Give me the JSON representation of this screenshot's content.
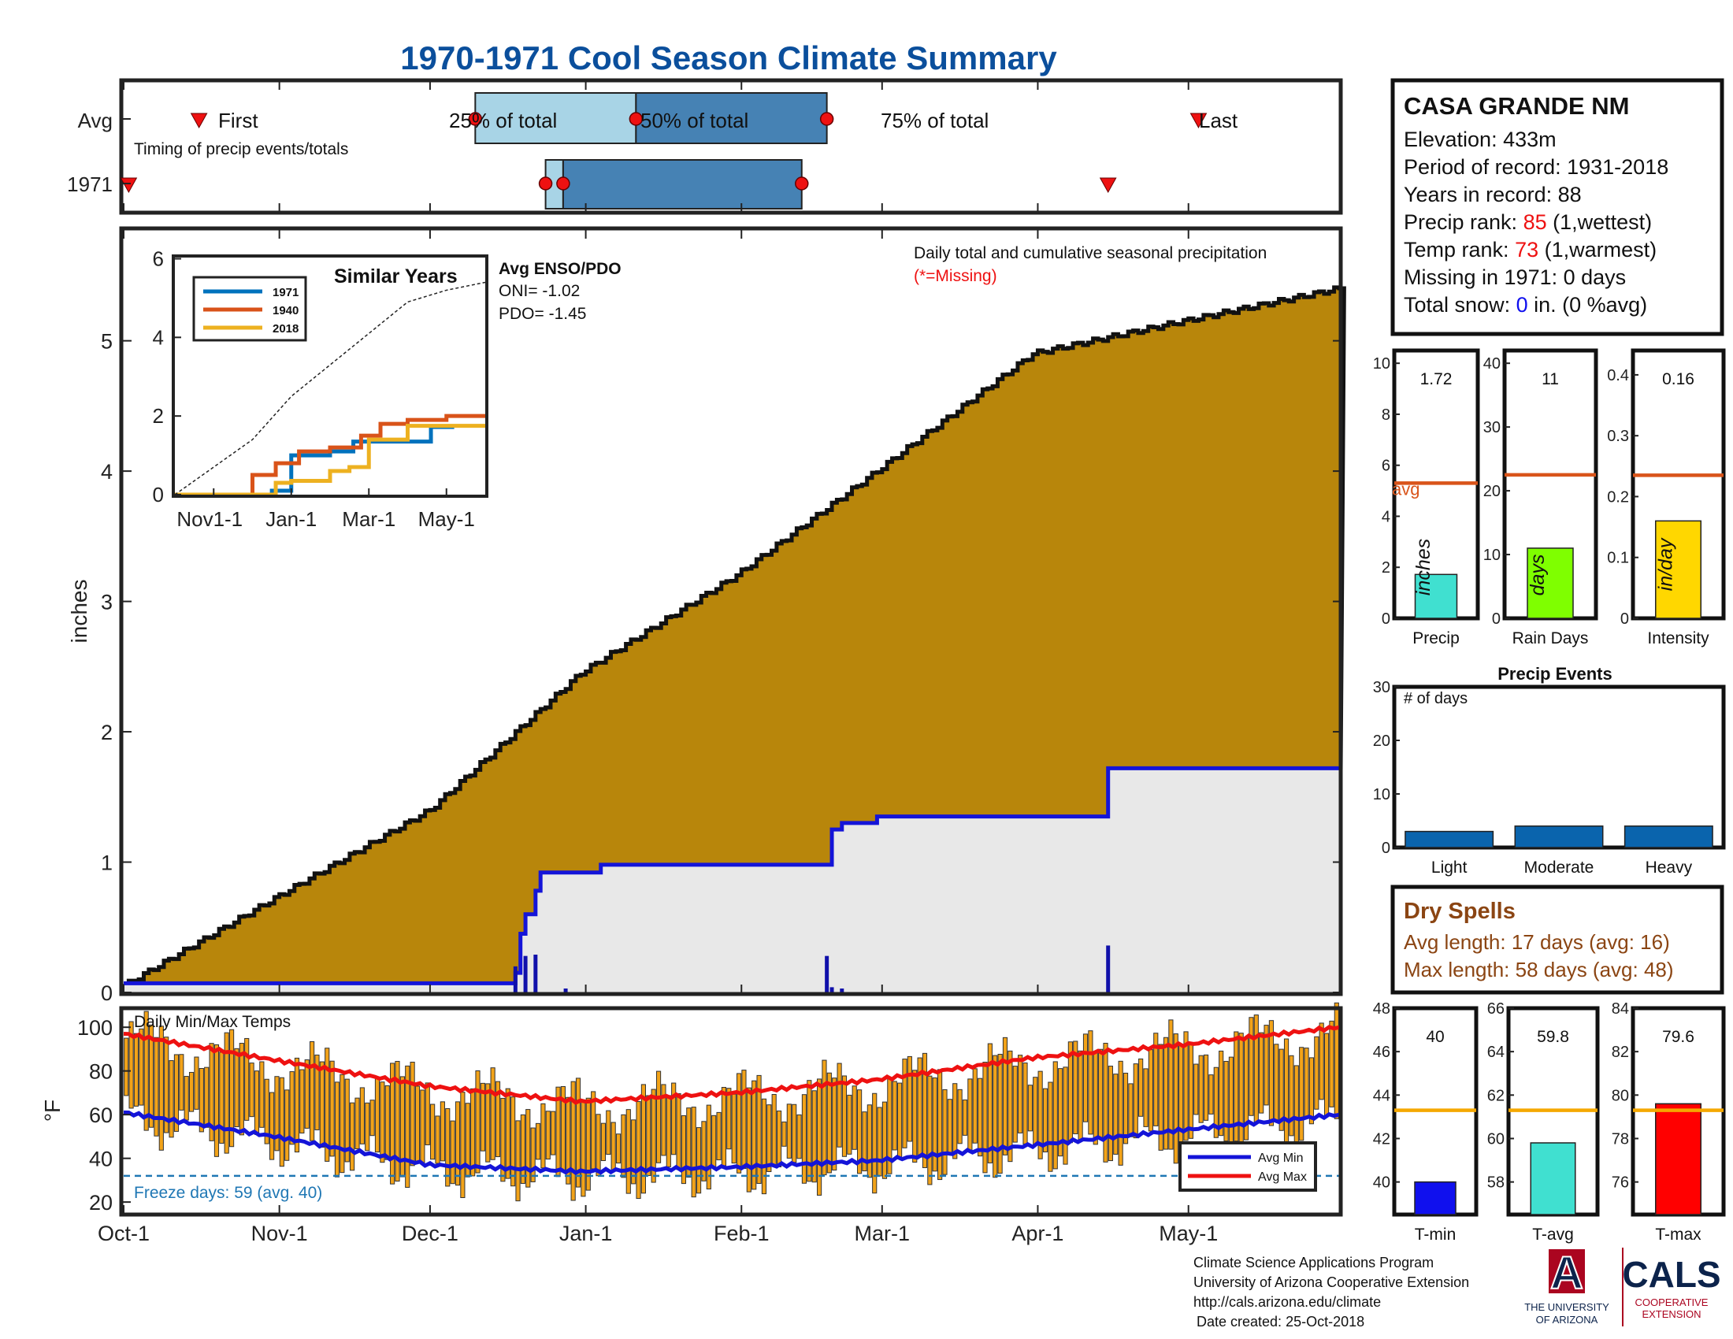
{
  "title": "1970-1971 Cool Season Climate Summary",
  "colors": {
    "title": "#0b4f9c",
    "brown": "#b8860b",
    "light_fill": "#e8e8e8",
    "blue_line": "#1414d8",
    "red_line": "#ee1111",
    "orange_bar": "#f2a319",
    "avg_line": "#d9541a",
    "temp_avg_line": "#f5a800",
    "precip_bar": "#40e0d0",
    "raindays_bar": "#7fff00",
    "intensity_bar": "#ffd700",
    "events_bar": "#0a64ad",
    "tmin_bar": "#1010ee",
    "tavg_bar": "#40e0d0",
    "tmax_bar": "#ff0000",
    "dry_spells": "#8b4513",
    "rank_red": "#ee1111",
    "snow_blue": "#1010ee",
    "box_light": "#a8d4e6",
    "box_dark": "#4682b4",
    "cals_blue": "#0c234b",
    "cals_red": "#ab0520"
  },
  "timing": {
    "row_avg": "Avg",
    "row_year": "1971",
    "subtitle": "Timing of precip events/totals",
    "first": "First",
    "p25": "25% of total",
    "p50": "50% of total",
    "p75": "75% of total",
    "last": "Last"
  },
  "station": {
    "name": "CASA GRANDE NM",
    "elevation": "Elevation: 433m",
    "period": "Period of record: 1931-2018",
    "years": "Years in record: 88",
    "precip_rank_label": "Precip rank: ",
    "precip_rank_value": "85",
    "precip_rank_suffix": " (1,wettest)",
    "temp_rank_label": "Temp rank: ",
    "temp_rank_value": "73",
    "temp_rank_suffix": " (1,warmest)",
    "missing": "Missing in 1971: 0 days",
    "snow_label": "Total snow: ",
    "snow_value": "0",
    "snow_suffix": " in. (0 %avg)"
  },
  "main_chart": {
    "ylabel": "inches",
    "legend_title": "Daily total and cumulative seasonal precipitation",
    "missing_note": "(*=Missing)",
    "yticks": [
      "0",
      "1",
      "2",
      "3",
      "4",
      "5"
    ],
    "xticks": [
      "Oct-1",
      "Nov-1",
      "Dec-1",
      "Jan-1",
      "Feb-1",
      "Mar-1",
      "Apr-1",
      "May-1"
    ]
  },
  "inset": {
    "title": "Similar Years",
    "legend": [
      "1971",
      "1940",
      "2018"
    ],
    "yticks": [
      "0",
      "2",
      "4",
      "6"
    ],
    "xticks": [
      "Nov1-1",
      "Jan-1",
      "Mar-1",
      "May-1"
    ],
    "enso_title": "Avg ENSO/PDO",
    "oni": "ONI= -1.02",
    "pdo": "PDO= -1.45"
  },
  "temp_chart": {
    "title": "Daily Min/Max Temps",
    "ylabel": "°F",
    "yticks": [
      "20",
      "40",
      "60",
      "80",
      "100"
    ],
    "freeze": "Freeze days: 59 (avg. 40)",
    "legend_min": "Avg Min",
    "legend_max": "Avg Max"
  },
  "small_bars": {
    "precip": {
      "label": "Precip",
      "value": "1.72",
      "unit": "inches",
      "yticks": [
        "0",
        "2",
        "4",
        "6",
        "8",
        "10"
      ],
      "avg_label": "avg"
    },
    "raindays": {
      "label": "Rain Days",
      "value": "11",
      "unit": "days",
      "yticks": [
        "0",
        "10",
        "20",
        "30",
        "40"
      ]
    },
    "intensity": {
      "label": "Intensity",
      "value": "0.16",
      "unit": "in/day",
      "yticks": [
        "0",
        "0.1",
        "0.2",
        "0.3",
        "0.4"
      ]
    }
  },
  "events": {
    "title": "Precip Events",
    "ylabel": "# of days",
    "yticks": [
      "0",
      "10",
      "20",
      "30"
    ],
    "categories": [
      "Light",
      "Moderate",
      "Heavy"
    ]
  },
  "dry_spells": {
    "title": "Dry Spells",
    "avg": "Avg length: 17 days (avg: 16)",
    "max": "Max length: 58 days (avg: 48)"
  },
  "temp_bars": {
    "tmin": {
      "label": "T-min",
      "value": "40",
      "yticks": [
        "40",
        "42",
        "44",
        "46",
        "48"
      ]
    },
    "tavg": {
      "label": "T-avg",
      "value": "59.8",
      "yticks": [
        "58",
        "60",
        "62",
        "64",
        "66"
      ]
    },
    "tmax": {
      "label": "T-max",
      "value": "79.6",
      "yticks": [
        "76",
        "78",
        "80",
        "82",
        "84"
      ]
    }
  },
  "footer": {
    "line1": "Climate Science Applications Program",
    "line2": "University of Arizona Cooperative Extension",
    "line3": "http://cals.arizona.edu/climate",
    "line4": "Date created: 25-Oct-2018",
    "ua_line1": "THE UNIVERSITY",
    "ua_line2": "OF ARIZONA",
    "ua_logo": "A",
    "cals": "CALS",
    "cals_sub1": "COOPERATIVE",
    "cals_sub2": "EXTENSION"
  },
  "chart_data": [
    {
      "type": "area",
      "name": "cumulative_avg",
      "xlim_days": [
        0,
        242
      ],
      "ylim": [
        0,
        5.85
      ],
      "avg_cumulative": {
        "x": [
          0,
          30,
          61,
          91,
          122,
          150,
          181,
          211,
          242
        ],
        "y": [
          0.05,
          0.72,
          1.4,
          2.45,
          3.2,
          4.0,
          4.9,
          5.15,
          5.4
        ]
      },
      "year_cumulative_steps": {
        "x": [
          0,
          60,
          78,
          79,
          80,
          82,
          83,
          95,
          140,
          141,
          143,
          150,
          196,
          242
        ],
        "y": [
          0.07,
          0.07,
          0.15,
          0.45,
          0.6,
          0.78,
          0.92,
          0.98,
          0.98,
          1.25,
          1.3,
          1.35,
          1.72,
          1.72
        ]
      },
      "daily_bars": {
        "x": [
          78,
          80,
          82,
          88,
          140,
          141,
          143,
          196
        ],
        "y": [
          0.2,
          0.28,
          0.29,
          0.03,
          0.28,
          0.04,
          0.03,
          0.36
        ]
      }
    },
    {
      "type": "line",
      "name": "similar_years",
      "x_months": [
        0,
        1,
        2,
        3,
        4,
        5,
        6,
        7,
        8
      ],
      "xticks": [
        "Nov1-1",
        "Jan-1",
        "Mar-1",
        "May-1"
      ],
      "ylim": [
        0,
        6
      ],
      "series": [
        {
          "name": "1971",
          "x": [
            0,
            2,
            2.5,
            3,
            4,
            4.6,
            5,
            6.6,
            7.2
          ],
          "y": [
            0,
            0,
            0.1,
            1.0,
            1.1,
            1.35,
            1.35,
            1.72,
            1.72
          ]
        },
        {
          "name": "1940",
          "x": [
            0,
            1.5,
            2,
            2.6,
            3.2,
            4,
            4.8,
            5.3,
            6,
            7,
            8
          ],
          "y": [
            0,
            0,
            0.5,
            0.8,
            1.1,
            1.2,
            1.5,
            1.8,
            1.9,
            2.0,
            2.05
          ]
        },
        {
          "name": "2018",
          "x": [
            0,
            2.2,
            2.6,
            3.0,
            4.0,
            4.5,
            5.0,
            6.0,
            8.0
          ],
          "y": [
            0,
            0,
            0.3,
            0.35,
            0.6,
            0.7,
            1.4,
            1.75,
            1.75
          ]
        },
        {
          "name": "avg",
          "x": [
            0,
            1,
            2,
            3,
            4,
            5,
            6,
            7,
            8
          ],
          "y": [
            0,
            0.7,
            1.4,
            2.5,
            3.3,
            4.1,
            4.9,
            5.2,
            5.4
          ]
        }
      ]
    },
    {
      "type": "bar",
      "name": "daily_temps",
      "ylim": [
        15,
        108
      ],
      "avg_max": {
        "x": [
          0,
          30,
          61,
          91,
          122,
          150,
          181,
          211,
          242
        ],
        "y": [
          97,
          85,
          73,
          66,
          70,
          76,
          86,
          92,
          100
        ]
      },
      "avg_min": {
        "x": [
          0,
          30,
          61,
          91,
          122,
          150,
          181,
          211,
          242
        ],
        "y": [
          61,
          50,
          37,
          34,
          36,
          39,
          46,
          53,
          60
        ]
      },
      "freeze_line": 32
    },
    {
      "type": "bar",
      "name": "precip_total",
      "categories": [
        "Precip"
      ],
      "values": [
        1.72
      ],
      "avg": 5.3,
      "ylim": [
        0,
        10.5
      ]
    },
    {
      "type": "bar",
      "name": "rain_days",
      "categories": [
        "Rain Days"
      ],
      "values": [
        11
      ],
      "avg": 22.5,
      "ylim": [
        0,
        42
      ]
    },
    {
      "type": "bar",
      "name": "intensity",
      "categories": [
        "Intensity"
      ],
      "values": [
        0.16
      ],
      "avg": 0.235,
      "ylim": [
        0,
        0.44
      ]
    },
    {
      "type": "bar",
      "name": "precip_events",
      "categories": [
        "Light",
        "Moderate",
        "Heavy"
      ],
      "values": [
        3,
        4,
        4
      ],
      "ylim": [
        0,
        30
      ]
    },
    {
      "type": "bar",
      "name": "t_min",
      "categories": [
        "T-min"
      ],
      "values": [
        40
      ],
      "avg": 43.3,
      "ylim": [
        38.5,
        48
      ]
    },
    {
      "type": "bar",
      "name": "t_avg",
      "categories": [
        "T-avg"
      ],
      "values": [
        59.8
      ],
      "avg": 61.3,
      "ylim": [
        56.5,
        66
      ]
    },
    {
      "type": "bar",
      "name": "t_max",
      "categories": [
        "T-max"
      ],
      "values": [
        79.6
      ],
      "avg": 79.3,
      "ylim": [
        74.5,
        84
      ]
    }
  ]
}
